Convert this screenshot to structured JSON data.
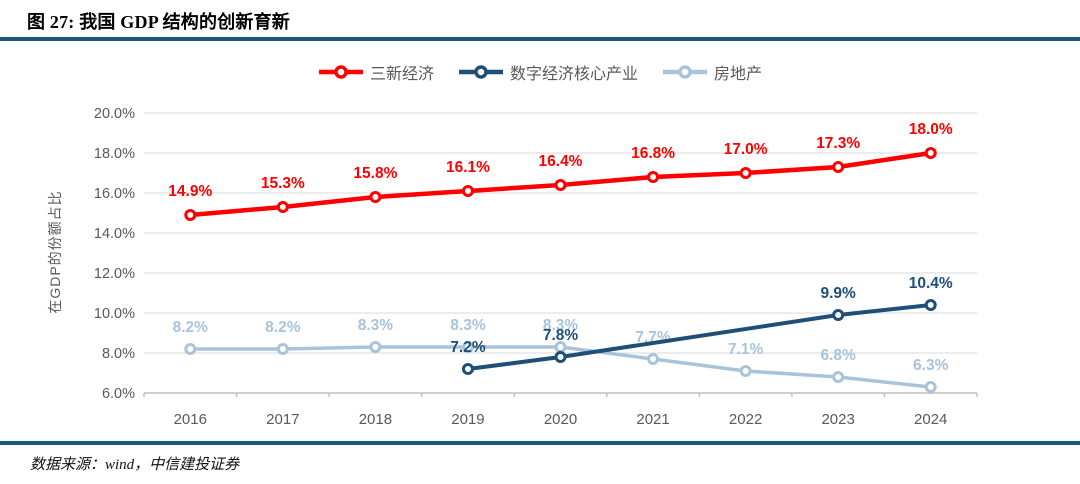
{
  "header": {
    "title": "图 27: 我国 GDP 结构的创新育新"
  },
  "footer": {
    "source": "数据来源：wind，中信建投证券"
  },
  "colors": {
    "rule_bar": "#1A5880",
    "grid": "#D9D9D9",
    "axis": "#BFBFBF",
    "tick_text": "#595959",
    "legend_text": "#595959",
    "series_red": "#FF0000",
    "series_blue": "#1F4E79",
    "series_gray": "#A9C3DB"
  },
  "chart_data": {
    "type": "line",
    "title": "图 27: 我国 GDP 结构的创新育新",
    "xlabel": "",
    "ylabel": "在GDP的份额占比",
    "categories": [
      "2016",
      "2017",
      "2018",
      "2019",
      "2020",
      "2021",
      "2022",
      "2023",
      "2024"
    ],
    "ylim": [
      6.0,
      20.0
    ],
    "ytick_step": 2.0,
    "ytick_format": "0.0%",
    "grid": true,
    "legend_position": "top-center",
    "legend": [
      {
        "label": "三新经济",
        "color": "#FF0000"
      },
      {
        "label": "数字经济核心产业",
        "color": "#1F4E79"
      },
      {
        "label": "房地产",
        "color": "#A9C3DB"
      }
    ],
    "series": [
      {
        "name": "房地产",
        "color": "#A9C3DB",
        "line_width": 3.5,
        "label_dy": -17,
        "values": [
          8.2,
          8.2,
          8.3,
          8.3,
          8.3,
          7.7,
          7.1,
          6.8,
          6.3
        ]
      },
      {
        "name": "数字经济核心产业",
        "color": "#1F4E79",
        "line_width": 4,
        "label_dy": -17,
        "values": [
          null,
          null,
          null,
          7.2,
          7.8,
          null,
          null,
          9.9,
          10.4
        ]
      },
      {
        "name": "三新经济",
        "color": "#FF0000",
        "line_width": 4.5,
        "label_dy": -19,
        "values": [
          14.9,
          15.3,
          15.8,
          16.1,
          16.4,
          16.8,
          17.0,
          17.3,
          18.0
        ]
      }
    ]
  }
}
